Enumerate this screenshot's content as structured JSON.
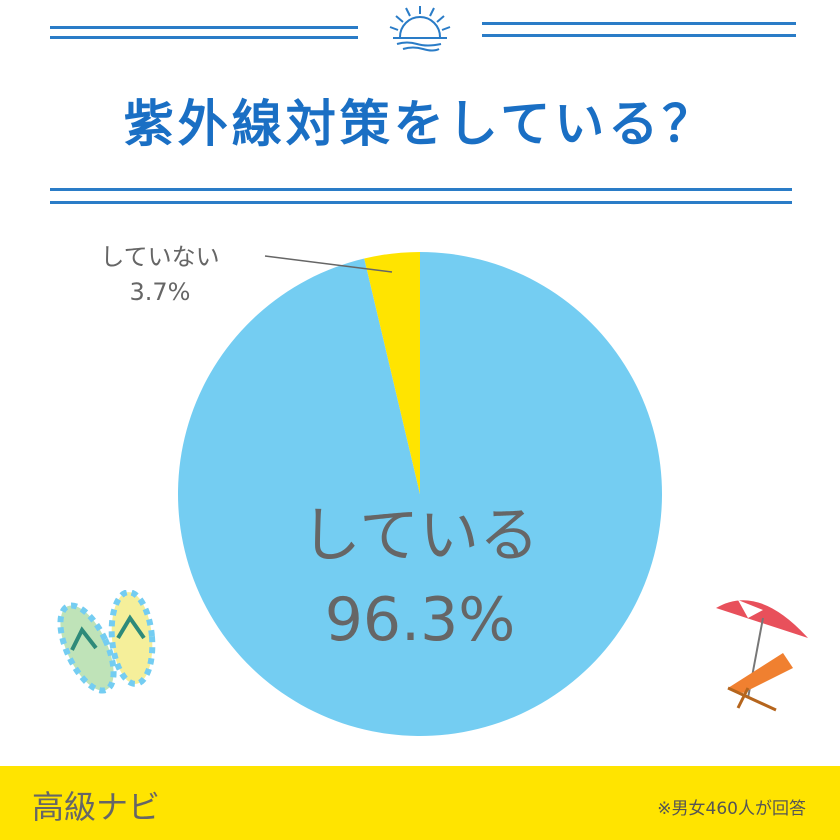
{
  "title": "紫外線対策をしている？",
  "chart_data": {
    "type": "pie",
    "categories": [
      "している",
      "していない"
    ],
    "values": [
      96.3,
      3.7
    ],
    "labels": [
      "96.3%",
      "3.7%"
    ],
    "colors": [
      "#74cdf2",
      "#ffe400"
    ]
  },
  "footer": {
    "brand": "高級ナビ",
    "note": "※男女460人が回答"
  },
  "icons": [
    "sun-wave-icon",
    "flip-flops-icon",
    "beach-chair-umbrella-icon"
  ]
}
